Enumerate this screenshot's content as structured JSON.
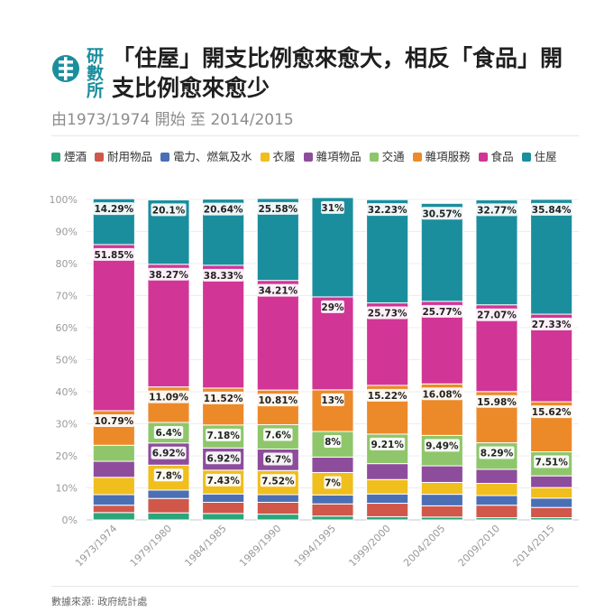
{
  "header": {
    "logo_text": "研數所",
    "title": "「住屋」開支比例愈來愈大，相反「食品」開支比例愈來愈少",
    "subtitle": "由1973/1974 開始 至 2014/2015"
  },
  "footer": {
    "source": "數據來源: 政府統計處"
  },
  "colors": {
    "煙酒": "#2aa67a",
    "耐用物品": "#d0574a",
    "電力、燃氣及水": "#4a6fb5",
    "衣履": "#f0be1d",
    "雜項物品": "#8e4d9c",
    "交通": "#8fc66b",
    "雜項服務": "#ec8a2a",
    "食品": "#d13596",
    "住屋": "#1b8e9e"
  },
  "chart_data": {
    "type": "bar",
    "stacked": true,
    "categories": [
      "1973/1974",
      "1979/1980",
      "1984/1985",
      "1989/1990",
      "1994/1995",
      "1999/2000",
      "2004/2005",
      "2009/2010",
      "2014/2015"
    ],
    "ylim": [
      0,
      100
    ],
    "yticks": [
      "0%",
      "10%",
      "20%",
      "30%",
      "40%",
      "50%",
      "60%",
      "70%",
      "80%",
      "90%",
      "100%"
    ],
    "legend_position": "top",
    "series": [
      {
        "name": "煙酒",
        "values": [
          2.3,
          2.2,
          2.0,
          1.8,
          1.2,
          1.0,
          0.9,
          0.7,
          0.7
        ]
      },
      {
        "name": "耐用物品",
        "values": [
          2.3,
          4.5,
          3.5,
          3.7,
          3.8,
          4.2,
          3.5,
          3.9,
          3.2
        ]
      },
      {
        "name": "電力、燃氣及水",
        "values": [
          3.3,
          2.6,
          2.6,
          2.4,
          2.8,
          2.9,
          3.6,
          3.0,
          2.9
        ]
      },
      {
        "name": "衣履",
        "values": [
          5.4,
          7.8,
          7.43,
          7.52,
          7.0,
          4.5,
          3.7,
          3.8,
          3.3
        ]
      },
      {
        "name": "雜項物品",
        "values": [
          5.0,
          6.92,
          6.92,
          6.7,
          4.8,
          4.97,
          5.18,
          4.39,
          3.65
        ]
      },
      {
        "name": "交通",
        "values": [
          5.0,
          6.4,
          7.18,
          7.6,
          8.0,
          9.21,
          9.49,
          8.29,
          7.51
        ]
      },
      {
        "name": "雜項服務",
        "values": [
          10.79,
          11.09,
          11.52,
          10.81,
          13.0,
          15.22,
          16.08,
          15.98,
          15.62
        ]
      },
      {
        "name": "食品",
        "values": [
          51.85,
          38.27,
          38.33,
          34.21,
          29.0,
          25.73,
          25.77,
          27.07,
          27.33
        ]
      },
      {
        "name": "住屋",
        "values": [
          14.29,
          20.1,
          20.64,
          25.58,
          31.0,
          32.23,
          30.57,
          32.77,
          35.84
        ]
      }
    ],
    "data_labels": [
      {
        "series": "交通",
        "values": [
          null,
          "6.4%",
          "7.18%",
          "7.6%",
          "8%",
          "9.21%",
          "9.49%",
          "8.29%",
          "7.51%"
        ]
      },
      {
        "series": "衣履",
        "values": [
          null,
          "7.8%",
          "7.43%",
          "7.52%",
          "7%",
          null,
          null,
          null,
          null
        ]
      },
      {
        "series": "雜項物品",
        "values": [
          null,
          "6.92%",
          "6.92%",
          "6.7%",
          null,
          null,
          null,
          null,
          null
        ]
      },
      {
        "series": "雜項服務",
        "values": [
          "10.79%",
          "11.09%",
          "11.52%",
          "10.81%",
          "13%",
          "15.22%",
          "16.08%",
          "15.98%",
          "15.62%"
        ]
      },
      {
        "series": "食品",
        "values": [
          "51.85%",
          "38.27%",
          "38.33%",
          "34.21%",
          "29%",
          "25.73%",
          "25.77%",
          "27.07%",
          "27.33%"
        ]
      },
      {
        "series": "住屋",
        "values": [
          "14.29%",
          "20.1%",
          "20.64%",
          "25.58%",
          "31%",
          "32.23%",
          "30.57%",
          "32.77%",
          "35.84%"
        ]
      }
    ]
  }
}
